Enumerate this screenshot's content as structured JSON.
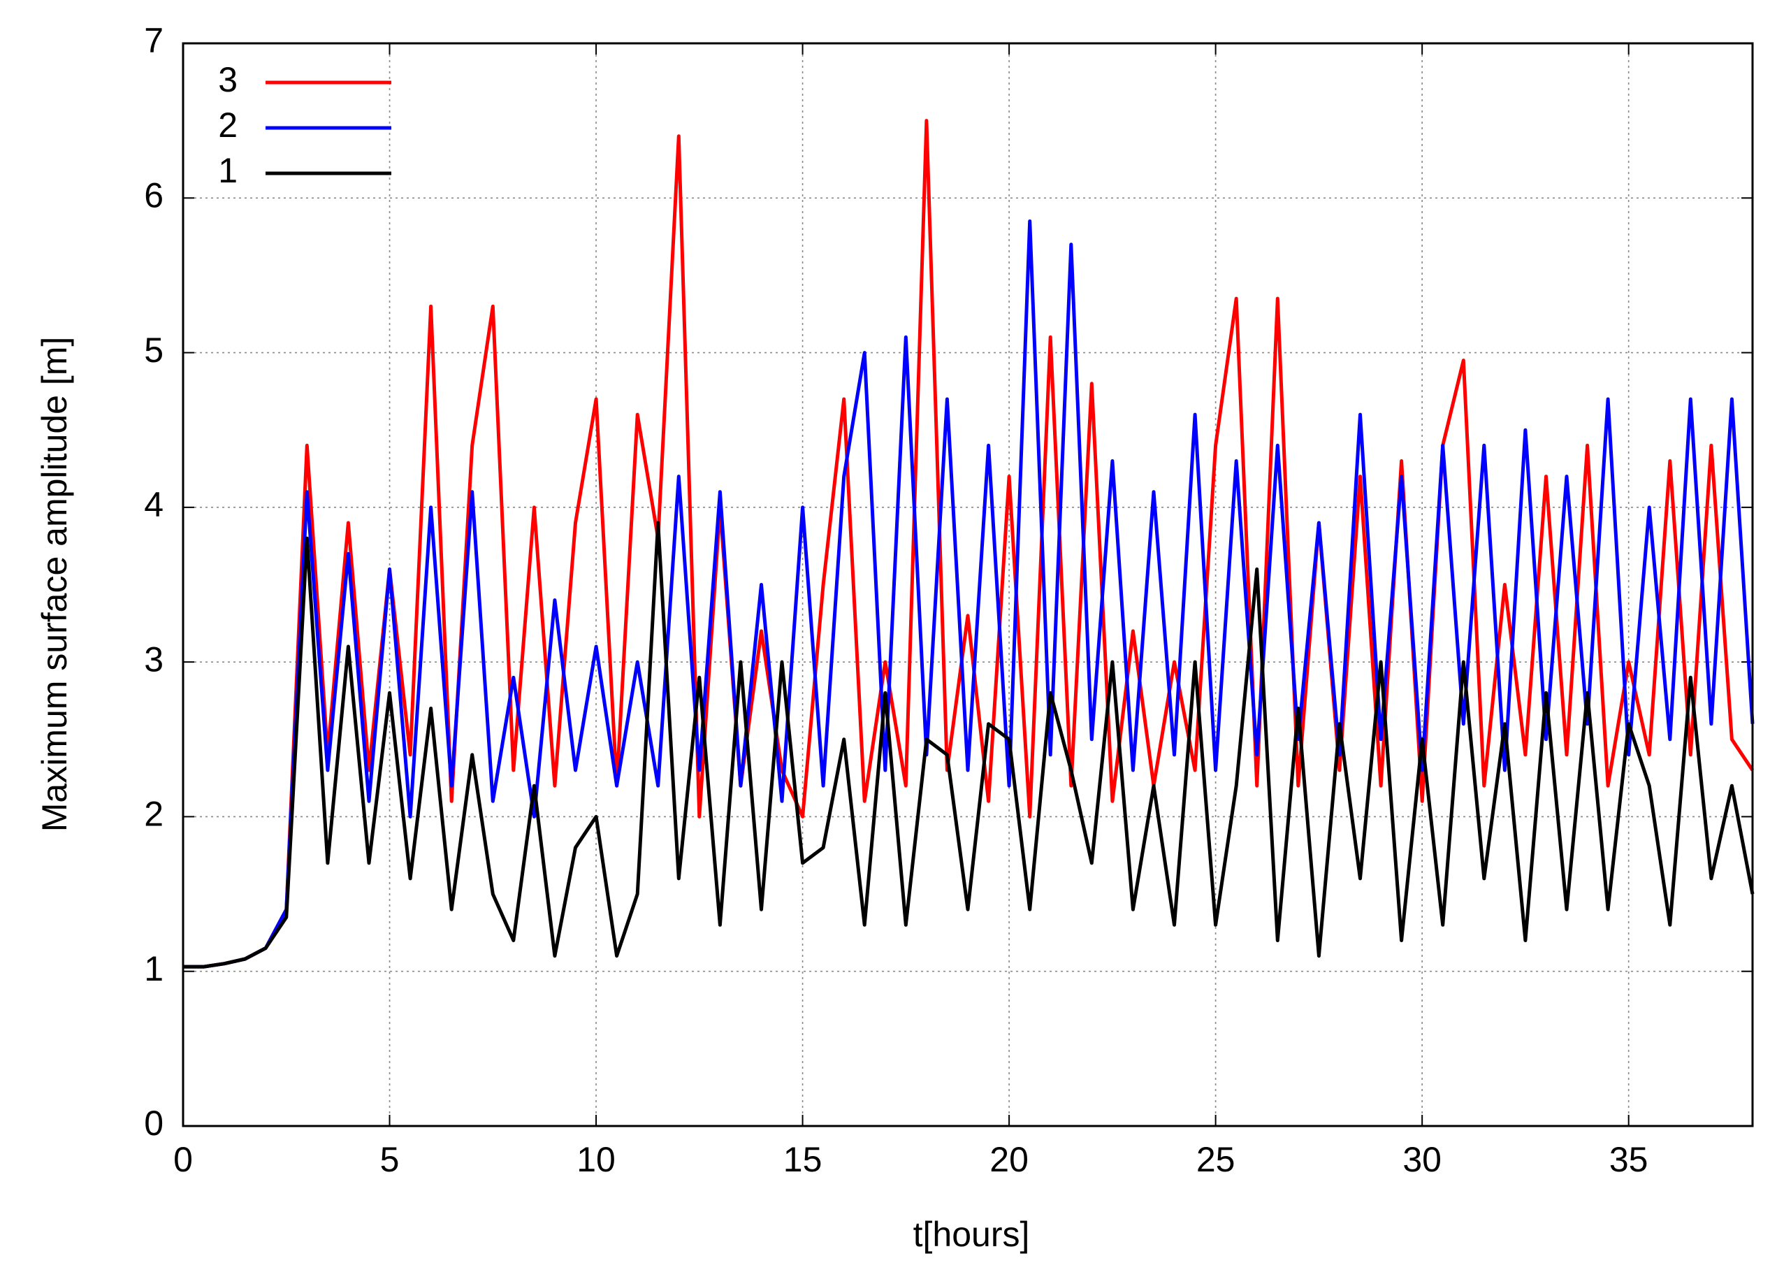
{
  "chart_data": {
    "type": "line",
    "xlabel": "t[hours]",
    "ylabel": "Maximum surface amplitude [m]",
    "x": [
      0,
      0.5,
      1,
      1.5,
      2,
      2.5,
      3,
      3.5,
      4,
      4.5,
      5,
      5.5,
      6,
      6.5,
      7,
      7.5,
      8,
      8.5,
      9,
      9.5,
      10,
      10.5,
      11,
      11.5,
      12,
      12.5,
      13,
      13.5,
      14,
      14.5,
      15,
      15.5,
      16,
      16.5,
      17,
      17.5,
      18,
      18.5,
      19,
      19.5,
      20,
      20.5,
      21,
      21.5,
      22,
      22.5,
      23,
      23.5,
      24,
      24.5,
      25,
      25.5,
      26,
      26.5,
      27,
      27.5,
      28,
      28.5,
      29,
      29.5,
      30,
      30.5,
      31,
      31.5,
      32,
      32.5,
      33,
      33.5,
      34,
      34.5,
      35,
      35.5,
      36,
      36.5,
      37,
      37.5,
      38
    ],
    "series": [
      {
        "name": "3",
        "color": "#ff0000",
        "values": [
          1.03,
          1.03,
          1.05,
          1.08,
          1.15,
          1.4,
          4.4,
          2.4,
          3.9,
          2.3,
          3.6,
          2.4,
          5.3,
          2.1,
          4.4,
          5.3,
          2.3,
          4.0,
          2.2,
          3.9,
          4.7,
          2.2,
          4.6,
          3.8,
          6.4,
          2.0,
          4.0,
          2.2,
          3.2,
          2.3,
          2.0,
          3.5,
          4.7,
          2.1,
          3.0,
          2.2,
          6.5,
          2.3,
          3.3,
          2.1,
          4.2,
          2.0,
          5.1,
          2.2,
          4.8,
          2.1,
          3.2,
          2.2,
          3.0,
          2.3,
          4.4,
          5.35,
          2.2,
          5.35,
          2.2,
          3.9,
          2.3,
          4.2,
          2.2,
          4.3,
          2.1,
          4.4,
          4.95,
          2.2,
          3.5,
          2.4,
          4.2,
          2.4,
          4.4,
          2.2,
          3.0,
          2.4,
          4.3,
          2.4,
          4.4,
          2.5,
          2.3
        ]
      },
      {
        "name": "2",
        "color": "#0000ff",
        "values": [
          1.03,
          1.03,
          1.05,
          1.08,
          1.15,
          1.4,
          4.1,
          2.3,
          3.7,
          2.1,
          3.6,
          2.0,
          4.0,
          2.2,
          4.1,
          2.1,
          2.9,
          2.0,
          3.4,
          2.3,
          3.1,
          2.2,
          3.0,
          2.2,
          4.2,
          2.3,
          4.1,
          2.2,
          3.5,
          2.1,
          4.0,
          2.2,
          4.2,
          5.0,
          2.3,
          5.1,
          2.4,
          4.7,
          2.3,
          4.4,
          2.2,
          5.85,
          2.4,
          5.7,
          2.5,
          4.3,
          2.3,
          4.1,
          2.4,
          4.6,
          2.3,
          4.3,
          2.4,
          4.4,
          2.5,
          3.9,
          2.4,
          4.6,
          2.5,
          4.2,
          2.3,
          4.4,
          2.6,
          4.4,
          2.3,
          4.5,
          2.5,
          4.2,
          2.6,
          4.7,
          2.4,
          4.0,
          2.5,
          4.7,
          2.6,
          4.7,
          2.6
        ]
      },
      {
        "name": "1",
        "color": "#000000",
        "values": [
          1.03,
          1.03,
          1.05,
          1.08,
          1.15,
          1.35,
          3.8,
          1.7,
          3.1,
          1.7,
          2.8,
          1.6,
          2.7,
          1.4,
          2.4,
          1.5,
          1.2,
          2.2,
          1.1,
          1.8,
          2.0,
          1.1,
          1.5,
          3.9,
          1.6,
          2.9,
          1.3,
          3.0,
          1.4,
          3.0,
          1.7,
          1.8,
          2.5,
          1.3,
          2.8,
          1.3,
          2.5,
          2.4,
          1.4,
          2.6,
          2.5,
          1.4,
          2.8,
          2.3,
          1.7,
          3.0,
          1.4,
          2.2,
          1.3,
          3.0,
          1.3,
          2.2,
          3.6,
          1.2,
          2.7,
          1.1,
          2.6,
          1.6,
          3.0,
          1.2,
          2.5,
          1.3,
          3.0,
          1.6,
          2.6,
          1.2,
          2.8,
          1.4,
          2.8,
          1.4,
          2.6,
          2.2,
          1.3,
          2.9,
          1.6,
          2.2,
          1.5
        ]
      }
    ],
    "xlim": [
      0,
      38
    ],
    "xticks": [
      0,
      5,
      10,
      15,
      20,
      25,
      30,
      35
    ],
    "ylim": [
      0,
      7
    ],
    "yticks": [
      0,
      1,
      2,
      3,
      4,
      5,
      6,
      7
    ],
    "grid": true,
    "legend": "upper left"
  }
}
